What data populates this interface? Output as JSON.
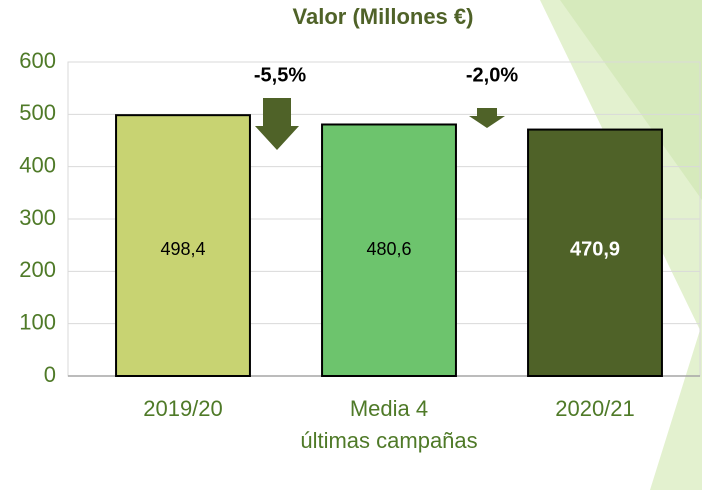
{
  "chart_data": {
    "type": "bar",
    "title": "Valor (Millones €)",
    "categories": [
      "2019/20",
      "Media 4\núltimas campañas",
      "2020/21"
    ],
    "values": [
      498.4,
      480.6,
      470.9
    ],
    "value_labels": [
      "498,4",
      "480,6",
      "470,9"
    ],
    "colors": [
      "#c8d372",
      "#6dc46d",
      "#4f6228"
    ],
    "ylim": [
      0,
      600
    ],
    "yticks": [
      0,
      100,
      200,
      300,
      400,
      500,
      600
    ],
    "grid": true,
    "annotations": [
      {
        "text": "-5,5%"
      },
      {
        "text": "-2,0%"
      }
    ]
  }
}
